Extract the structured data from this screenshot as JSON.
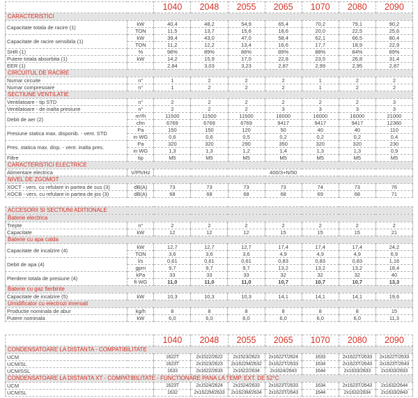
{
  "accent_red": "#d52f23",
  "section_bg": "#e4e4e4",
  "border_color": "#b3b3b3",
  "columns": [
    "1040",
    "2048",
    "2055",
    "2065",
    "1070",
    "2080",
    "2090"
  ],
  "main_table": {
    "rows": [
      {
        "type": "section",
        "label": "CARACTERISTICI"
      },
      {
        "type": "data",
        "label": "Capacitate totala de racire (1)",
        "lines": [
          {
            "unit": "kW",
            "values": [
              "40,4",
              "48,2",
              "54,9",
              "65,4",
              "70,2",
              "79,1",
              "90,2"
            ]
          },
          {
            "unit": "TON",
            "values": [
              "11,5",
              "13,7",
              "15,6",
              "18,6",
              "20,0",
              "22,5",
              "25,6"
            ]
          }
        ]
      },
      {
        "type": "data",
        "label": "Capacitate de racire sensibila (1)",
        "lines": [
          {
            "unit": "kW",
            "values": [
              "39,4",
              "43,0",
              "47,0",
              "58,4",
              "62,1",
              "66,5",
              "80,4"
            ]
          },
          {
            "unit": "TON",
            "values": [
              "11,2",
              "12,2",
              "13,4",
              "16,6",
              "17,7",
              "18,9",
              "22,9"
            ]
          }
        ]
      },
      {
        "type": "data",
        "label": "SHR (1)",
        "lines": [
          {
            "unit": "%",
            "values": [
              "98%",
              "89%",
              "86%",
              "89%",
              "88%",
              "84%",
              "89%"
            ]
          }
        ]
      },
      {
        "type": "data",
        "label": "Putere totala absorbita (1)",
        "lines": [
          {
            "unit": "kW",
            "values": [
              "14,2",
              "15,9",
              "17,0",
              "22,8",
              "23,5",
              "26,8",
              "31,4"
            ]
          }
        ]
      },
      {
        "type": "data",
        "label": "EER (1)",
        "lines": [
          {
            "unit": "",
            "values": [
              "2,84",
              "3,03",
              "3,23",
              "2,87",
              "2,99",
              "2,95",
              "2,87"
            ]
          }
        ]
      },
      {
        "type": "section",
        "label": "CIRCUITUL DE RACIRE"
      },
      {
        "type": "data",
        "label": "Numar circuite",
        "lines": [
          {
            "unit": "n°",
            "values": [
              "1",
              "2",
              "2",
              "2",
              "1",
              "2",
              "2"
            ]
          }
        ]
      },
      {
        "type": "data",
        "label": "Numar compresoare",
        "lines": [
          {
            "unit": "n°",
            "values": [
              "1",
              "2",
              "2",
              "2",
              "1",
              "2",
              "2"
            ]
          }
        ]
      },
      {
        "type": "section",
        "label": "SECTIUNE VENTILATIE"
      },
      {
        "type": "data",
        "label": "Ventilatoare - tip STD",
        "lines": [
          {
            "unit": "n°",
            "values": [
              "2",
              "2",
              "2",
              "2",
              "2",
              "2",
              "3"
            ]
          }
        ]
      },
      {
        "type": "data",
        "label": "Ventilatoare -  de inalta presiune",
        "lines": [
          {
            "unit": "n°",
            "values": [
              "2",
              "2",
              "2",
              "3",
              "3",
              "3",
              "3"
            ]
          }
        ]
      },
      {
        "type": "data",
        "label": "Debit de aer (2)",
        "lines": [
          {
            "unit": "m³/h",
            "values": [
              "11500",
              "11500",
              "11500",
              "16000",
              "16000",
              "16000",
              "21000"
            ]
          },
          {
            "unit": "cfm",
            "values": [
              "6769",
              "6769",
              "6769",
              "9417",
              "9417",
              "9417",
              "12360"
            ]
          }
        ]
      },
      {
        "type": "data",
        "label": "Presiune statica max. disponib. - vent. STD",
        "lines": [
          {
            "unit": "Pa",
            "values": [
              "150",
              "150",
              "120",
              "50",
              "40",
              "40",
              "110"
            ]
          },
          {
            "unit": "in WG",
            "values": [
              "0,6",
              "0,6",
              "0,5",
              "0,2",
              "0,2",
              "0,2",
              "0,4"
            ]
          }
        ]
      },
      {
        "type": "data",
        "label": "Pres. statica max. disp. - vent. inalta pres.",
        "lines": [
          {
            "unit": "Pa",
            "values": [
              "320",
              "320",
              "290",
              "350",
              "320",
              "320",
              "230"
            ]
          },
          {
            "unit": "in WG",
            "values": [
              "1,3",
              "1,3",
              "1,2",
              "1,4",
              "1,3",
              "1,3",
              "0,9"
            ]
          }
        ]
      },
      {
        "type": "data",
        "label": "Filtre",
        "lines": [
          {
            "unit": "tip",
            "values": [
              "M5",
              "M5",
              "M5",
              "M5",
              "M5",
              "M5",
              "M5"
            ]
          }
        ]
      },
      {
        "type": "section",
        "label": "CARACTERISTICI ELECTRICE"
      },
      {
        "type": "data",
        "label": "Alimentare electrica",
        "lines": [
          {
            "unit": "V/Ph/Hz",
            "span_value": "400/3+N/50"
          }
        ]
      },
      {
        "type": "section",
        "label": "NIVEL DE ZGOMOT"
      },
      {
        "type": "data",
        "label": "XOCT - vers. cu refulare in partea de sus (3)",
        "lines": [
          {
            "unit": "dB(A)",
            "values": [
              "73",
              "73",
              "73",
              "73",
              "74",
              "73",
              "76"
            ]
          }
        ]
      },
      {
        "type": "data",
        "label": "XOCB - vers. cu refulare in partea de jos (3)",
        "lines": [
          {
            "unit": "dB(A)",
            "values": [
              "68",
              "68",
              "68",
              "68",
              "69",
              "68",
              "71"
            ]
          }
        ]
      }
    ]
  },
  "accessories_table": {
    "rows": [
      {
        "type": "section",
        "label": "ACCESORII SI SECTIUNI ADITIONALE"
      },
      {
        "type": "section",
        "label": "Baterie electrica"
      },
      {
        "type": "data",
        "label": "Trepte",
        "lines": [
          {
            "unit": "n°",
            "values": [
              "2",
              "2",
              "2",
              "2",
              "2",
              "2",
              "2"
            ]
          }
        ]
      },
      {
        "type": "data",
        "label": "Capacitate",
        "lines": [
          {
            "unit": "kW",
            "values": [
              "12",
              "12",
              "12",
              "15",
              "15",
              "15",
              "21"
            ]
          }
        ]
      },
      {
        "type": "section",
        "label": "Baterie cu apa calda"
      },
      {
        "type": "data",
        "label": "Capacitate de incalzire (4)",
        "lines": [
          {
            "unit": "kW",
            "values": [
              "12,7",
              "12,7",
              "12,7",
              "17,4",
              "17,4",
              "17,4",
              "24,2"
            ]
          },
          {
            "unit": "TON",
            "values": [
              "3,6",
              "3,6",
              "3,6",
              "4,9",
              "4,9",
              "4,9",
              "6,9"
            ]
          }
        ]
      },
      {
        "type": "data",
        "label": "Debit de apa (4)",
        "lines": [
          {
            "unit": "l/s",
            "values": [
              "0,61",
              "0,61",
              "0,61",
              "0,83",
              "0,83",
              "0,83",
              "1,16"
            ]
          },
          {
            "unit": "gpm",
            "values": [
              "9,7",
              "9,7",
              "9,7",
              "13,2",
              "13,2",
              "13,2",
              "18,4"
            ]
          }
        ]
      },
      {
        "type": "data",
        "label": "Pierdere totala de presiune (4)",
        "lines": [
          {
            "unit": "kPa",
            "values": [
              "33",
              "33",
              "33",
              "32",
              "32",
              "32",
              "40"
            ]
          },
          {
            "unit": "ft WG",
            "bold": true,
            "values": [
              "11,0",
              "11,0",
              "11,0",
              "10,7",
              "10,7",
              "10,7",
              "13,3"
            ]
          }
        ]
      },
      {
        "type": "section",
        "label": "Baterie cu gaz fierbinte"
      },
      {
        "type": "data",
        "label": "Capacitate de incalzire (5)",
        "lines": [
          {
            "unit": "kW",
            "values": [
              "10,3",
              "10,3",
              "10,3",
              "14,1",
              "14,1",
              "14,1",
              "19,6"
            ]
          }
        ]
      },
      {
        "type": "section",
        "label": "Umidificator cu electrozi imersati"
      },
      {
        "type": "data",
        "label": "Productie nominala de abur",
        "lines": [
          {
            "unit": "kg/h",
            "values": [
              "8",
              "8",
              "8",
              "8",
              "8",
              "8",
              "15"
            ]
          }
        ]
      },
      {
        "type": "data",
        "label": "Putere nominala",
        "lines": [
          {
            "unit": "kW",
            "values": [
              "6,0",
              "6,0",
              "6,0",
              "6,0",
              "6,0",
              "6,0",
              "11,3"
            ]
          }
        ]
      }
    ]
  },
  "condensers_table": {
    "rows": [
      {
        "type": "section",
        "label": "CONDENSATOARE LA DISTANTA - COMPATIBILITATE"
      },
      {
        "type": "plain",
        "label": "UCM",
        "values": [
          "1622T",
          "2x1522/2622",
          "2x1523/2623",
          "2x1622T/2624",
          "1633",
          "2x1622T/2633",
          "2x1622T/2633"
        ]
      },
      {
        "type": "plain",
        "label": "UCM/SL",
        "values": [
          "1623T",
          "2x1523/2623",
          "2x1622M/2632",
          "2x1622T/2633",
          "1634",
          "2x1623T/2643",
          "2x1623T/2643"
        ]
      },
      {
        "type": "plain",
        "label": "UCM/SSL",
        "values": [
          "1633",
          "2x1622/2633",
          "2x1622/2634",
          "2x1624/2643",
          "1644",
          "2x1633/2833",
          "2x1633/2833"
        ]
      },
      {
        "type": "section",
        "label": "CONDENSATOARE LA DISTANTA XT - COMPATIBILITATE  -  FUNCTIONARE PANA LA TEMP. EXT. DE 52°C"
      },
      {
        "type": "plain",
        "label": "UCM",
        "values": [
          "1623T",
          "2x1524/2624",
          "2x1524/2633",
          "2x1623T/2633",
          "1634",
          "2x1623T/2643",
          "2x1632/2644"
        ]
      },
      {
        "type": "plain",
        "label": "UCM/SL",
        "values": [
          "1632",
          "2x1622M/2633",
          "2x1623M/2634",
          "2x1623T/2643",
          "1644",
          "2x1632/2834",
          "2x1633/2843"
        ]
      }
    ]
  }
}
